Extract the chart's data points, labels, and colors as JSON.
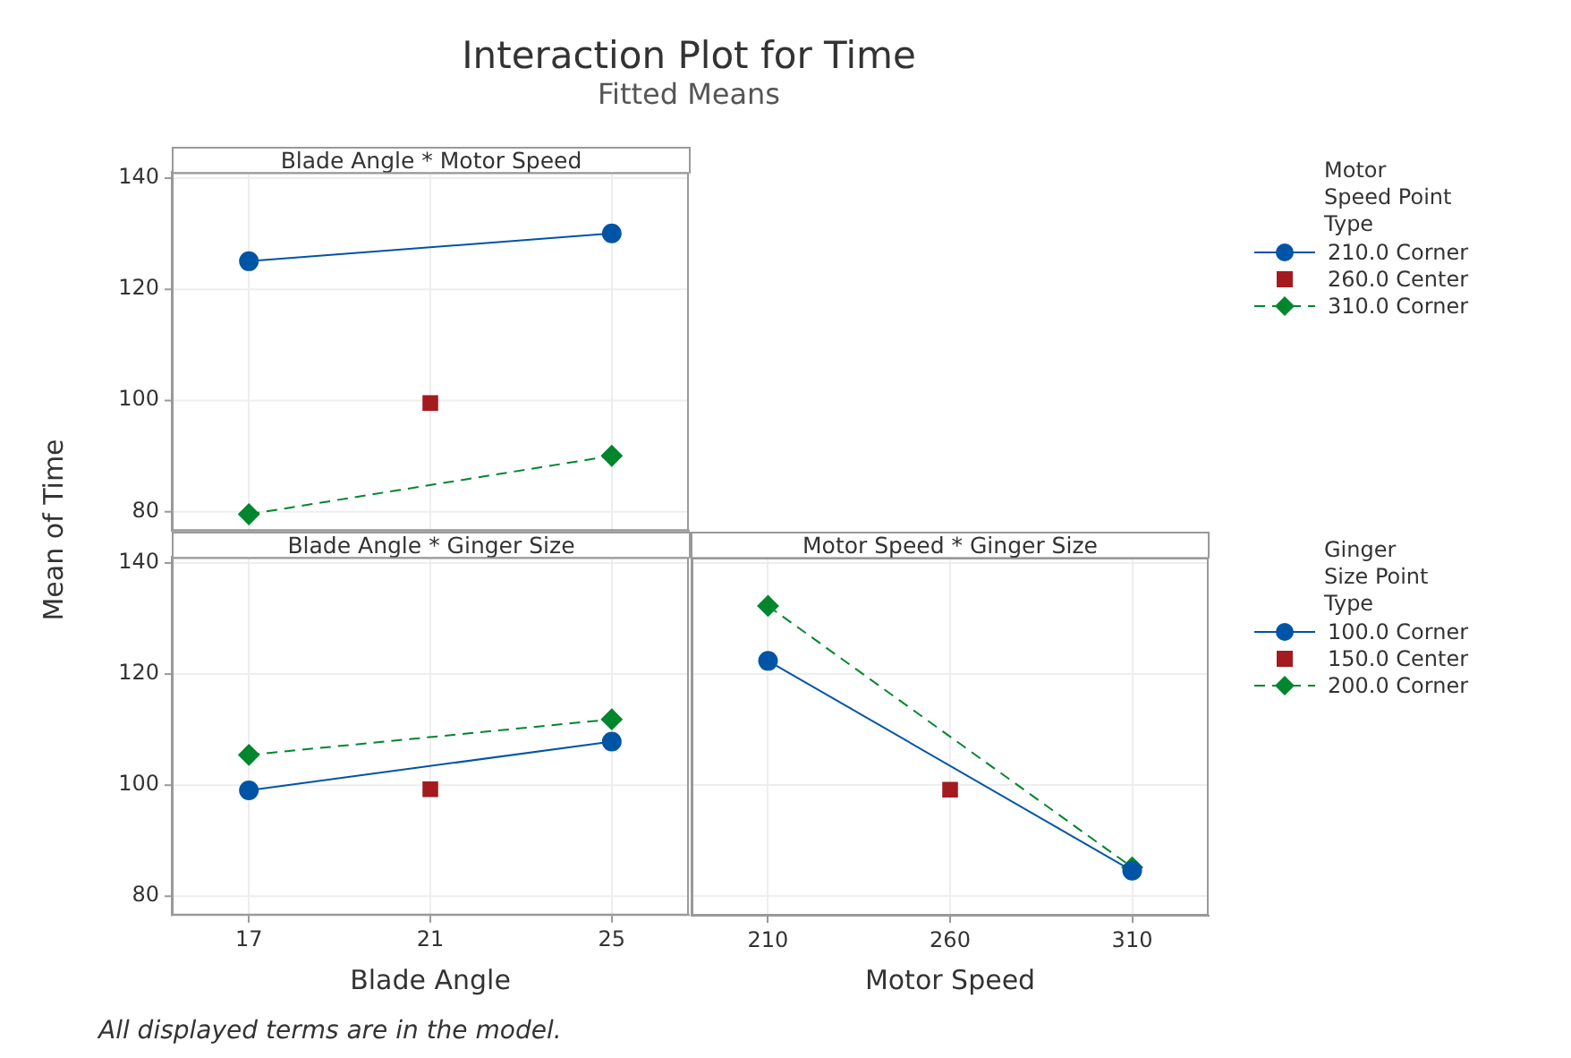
{
  "chart_data": [
    {
      "type": "other",
      "title": "Interaction Plot for Time",
      "subtitle": "Fitted Means",
      "annotations": [
        "All displayed terms are in the model."
      ]
    },
    {
      "type": "line",
      "title": "Blade Angle * Motor Speed",
      "xlim": [
        15.3,
        26.7
      ],
      "xticks": [
        17,
        21,
        25
      ],
      "ylim": [
        76.5,
        141
      ],
      "yticks": [
        80,
        100,
        120,
        140
      ],
      "tick_labels": "y",
      "grid": true,
      "legend": "right",
      "legend_title": "Motor\nSpeed Point Type",
      "series": [
        {
          "name": "210.0 Corner",
          "color": "#0054a6",
          "type": "line",
          "marker": "circle",
          "line_style": "solid",
          "x": [
            17,
            25
          ],
          "values": [
            125,
            130
          ]
        },
        {
          "name": "260.0 Center",
          "color": "#a31b1f",
          "type": "scatter",
          "marker": "square",
          "x": [
            21
          ],
          "values": [
            99.5
          ]
        },
        {
          "name": "310.0 Corner",
          "color": "#00862d",
          "type": "line",
          "marker": "diamond",
          "line_style": "dashed",
          "x": [
            17,
            25
          ],
          "values": [
            79.5,
            90
          ]
        }
      ]
    },
    {
      "type": "line",
      "title": "Blade Angle * Ginger Size",
      "xlabel": "Blade Angle",
      "ylabel": "Mean of Time",
      "xlim": [
        15.3,
        26.7
      ],
      "xticks": [
        17,
        21,
        25
      ],
      "ylim": [
        76.5,
        141
      ],
      "yticks": [
        80,
        100,
        120,
        140
      ],
      "grid": true,
      "series": [
        {
          "color": "#0054a6",
          "type": "line",
          "marker": "circle",
          "line_style": "solid",
          "x": [
            17,
            25
          ],
          "values": [
            99,
            107.8
          ]
        },
        {
          "color": "#a31b1f",
          "type": "scatter",
          "marker": "square",
          "x": [
            21
          ],
          "values": [
            99.2
          ]
        },
        {
          "color": "#00862d",
          "type": "line",
          "marker": "diamond",
          "line_style": "dashed",
          "x": [
            17,
            25
          ],
          "values": [
            105.4,
            111.8
          ]
        }
      ]
    },
    {
      "type": "line",
      "title": "Motor Speed * Ginger Size",
      "xlabel": "Motor Speed",
      "xlim": [
        189,
        331
      ],
      "xticks": [
        210,
        260,
        310
      ],
      "ylim": [
        76.5,
        141
      ],
      "yticks": [
        80,
        100,
        120,
        140
      ],
      "tick_labels": "x",
      "grid": true,
      "legend": "right",
      "legend_title": "Ginger\nSize Point Type",
      "series": [
        {
          "name": "100.0 Corner",
          "color": "#0054a6",
          "type": "line",
          "marker": "circle",
          "line_style": "solid",
          "x": [
            210,
            310
          ],
          "values": [
            122.4,
            84.6
          ]
        },
        {
          "name": "150.0 Center",
          "color": "#a31b1f",
          "type": "scatter",
          "marker": "square",
          "x": [
            260
          ],
          "values": [
            99.2
          ]
        },
        {
          "name": "200.0 Corner",
          "color": "#00862d",
          "type": "line",
          "marker": "diamond",
          "line_style": "dashed",
          "x": [
            210,
            310
          ],
          "values": [
            132.3,
            85.2
          ]
        }
      ]
    }
  ]
}
